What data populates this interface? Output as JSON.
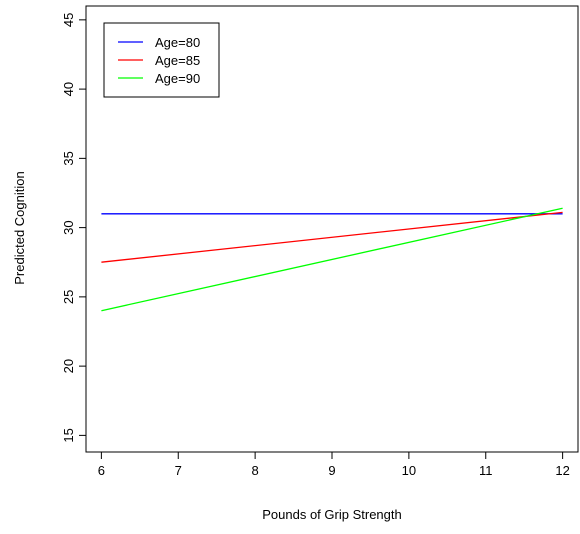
{
  "chart_data": {
    "type": "line",
    "title": "",
    "xlabel": "Pounds of Grip Strength",
    "ylabel": "Predicted Cognition",
    "xlim": [
      5.8,
      12.2
    ],
    "ylim": [
      13.8,
      46.0
    ],
    "xticks": [
      6,
      7,
      8,
      9,
      10,
      11,
      12
    ],
    "yticks": [
      15,
      20,
      25,
      30,
      35,
      40,
      45
    ],
    "grid": false,
    "legend_position": "top-left",
    "series": [
      {
        "name": "Age=80",
        "color": "#0000ff",
        "x": [
          6,
          12
        ],
        "y": [
          31.0,
          31.0
        ]
      },
      {
        "name": "Age=85",
        "color": "#ff0000",
        "x": [
          6,
          12
        ],
        "y": [
          27.5,
          31.1
        ]
      },
      {
        "name": "Age=90",
        "color": "#00ff00",
        "x": [
          6,
          12
        ],
        "y": [
          24.0,
          31.4
        ]
      }
    ]
  }
}
